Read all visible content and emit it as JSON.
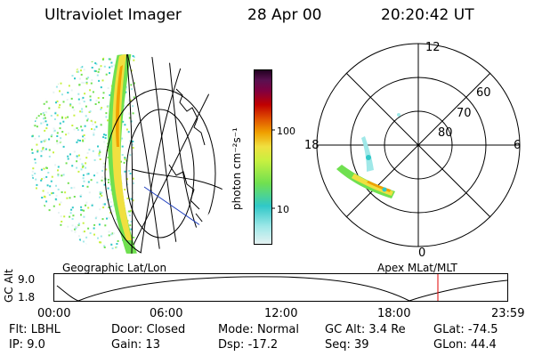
{
  "header": {
    "title": "Ultraviolet Imager",
    "date": "28 Apr 00",
    "time": "20:20:42 UT"
  },
  "left_panel": {
    "label": "Geographic Lat/Lon"
  },
  "colorbar": {
    "unit_label": "photon cm⁻²s⁻¹",
    "ticks": [
      "100",
      "10"
    ]
  },
  "right_panel": {
    "label": "Apex MLat/MLT",
    "mlt_labels": {
      "top": "12",
      "left": "18",
      "right": "6",
      "bottom": "0"
    },
    "lat_labels": [
      "60",
      "70",
      "80"
    ]
  },
  "orbit_plot": {
    "ylabel": "GC Alt",
    "yticks": [
      "9.0",
      "1.8"
    ],
    "xticks": [
      "00:00",
      "06:00",
      "12:00",
      "18:00",
      "23:59"
    ],
    "current_marker_color": "#e00000"
  },
  "footer": {
    "row1": [
      {
        "label": "Flt:",
        "value": "LBHL"
      },
      {
        "label": "Door:",
        "value": "Closed"
      },
      {
        "label": "Mode:",
        "value": "Normal"
      },
      {
        "label": "GC Alt:",
        "value": "3.4 Re"
      },
      {
        "label": "GLat:",
        "value": "-74.5"
      }
    ],
    "row2": [
      {
        "label": "IP:",
        "value": "9.0"
      },
      {
        "label": "Gain:",
        "value": "13"
      },
      {
        "label": "Dsp:",
        "value": "-17.2"
      },
      {
        "label": "Seq:",
        "value": "39"
      },
      {
        "label": "GLon:",
        "value": "44.4"
      }
    ]
  },
  "colors": {
    "line": "#000000",
    "colormap": [
      "#e6f2f2",
      "#a0e8e8",
      "#30c8c8",
      "#70e050",
      "#c8f040",
      "#f0e040",
      "#f0a000",
      "#e05000",
      "#c00000",
      "#800040",
      "#5a1050",
      "#200020"
    ]
  }
}
